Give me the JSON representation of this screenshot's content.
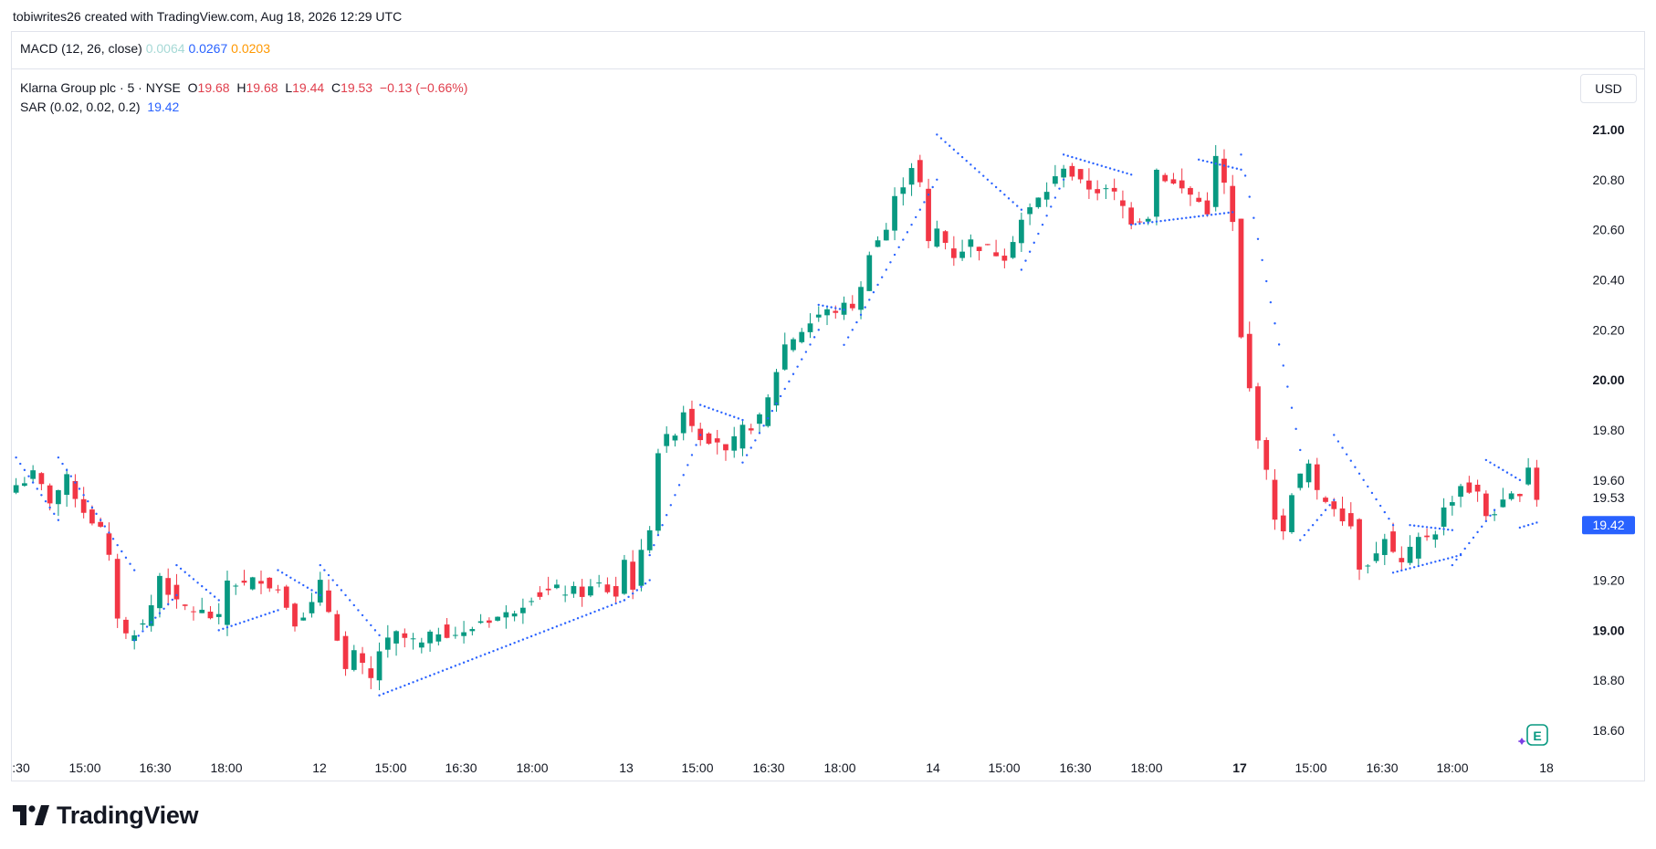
{
  "header": {
    "credit": "tobiwrites26 created with TradingView.com, Aug 18, 2026 12:29 UTC"
  },
  "macd": {
    "label": "MACD (12, 26, close)",
    "v1": "0.0064",
    "v2": "0.0267",
    "v3": "0.0203",
    "colors": {
      "v1": "#a6d9d6",
      "v2": "#2962ff",
      "v3": "#ff9800"
    }
  },
  "legend": {
    "symbol": "Klarna Group plc · 5 · NYSE",
    "o_label": "O",
    "o_value": "19.68",
    "h_label": "H",
    "h_value": "19.68",
    "l_label": "L",
    "l_value": "19.44",
    "c_label": "C",
    "c_value": "19.53",
    "change": "−0.13 (−0.66%)",
    "sar_label": "SAR (0.02, 0.02, 0.2)",
    "sar_value": "19.42"
  },
  "currency_button": "USD",
  "brand": {
    "name": "TradingView"
  },
  "icons": {
    "logo": "tradingview-logo-icon",
    "earnings": "earnings-e-icon"
  },
  "chart_data": {
    "type": "candlestick",
    "ylim": [
      18.52,
      21.08
    ],
    "y_ticks": [
      "21.00",
      "20.80",
      "20.60",
      "20.40",
      "20.20",
      "20.00",
      "19.80",
      "19.60",
      "19.20",
      "19.00",
      "18.80",
      "18.60"
    ],
    "y_bold_ticks": [
      "21.00",
      "20.00",
      "19.00"
    ],
    "current_price_label": "19.53",
    "sar_price_label": "19.42",
    "x_ticks": [
      ":30",
      "15:00",
      "16:30",
      "18:00",
      "12",
      "15:00",
      "16:30",
      "18:00",
      "13",
      "15:00",
      "16:30",
      "18:00",
      "14",
      "15:00",
      "16:30",
      "18:00",
      "17",
      "15:00",
      "16:30",
      "18:00",
      "18"
    ],
    "x_bold_ticks": [
      "17"
    ],
    "colors": {
      "up": "#089981",
      "down": "#f23645",
      "sar": "#2962ff",
      "price_tag": "#2962ff"
    },
    "price_path": [
      [
        0,
        19.58
      ],
      [
        2,
        19.62
      ],
      [
        4,
        19.52
      ],
      [
        6,
        19.6
      ],
      [
        8,
        19.48
      ],
      [
        10,
        19.4
      ],
      [
        11,
        19.28
      ],
      [
        12,
        19.06
      ],
      [
        13,
        18.98
      ],
      [
        15,
        19.02
      ],
      [
        16,
        19.1
      ],
      [
        17,
        19.22
      ],
      [
        19,
        19.1
      ],
      [
        22,
        19.07
      ],
      [
        24,
        19.04
      ],
      [
        25,
        19.2
      ],
      [
        27,
        19.18
      ],
      [
        29,
        19.21
      ],
      [
        31,
        19.16
      ],
      [
        33,
        19.04
      ],
      [
        35,
        19.1
      ],
      [
        36,
        19.18
      ],
      [
        37,
        19.08
      ],
      [
        38,
        18.98
      ],
      [
        39,
        18.84
      ],
      [
        40,
        18.9
      ],
      [
        42,
        18.8
      ],
      [
        43,
        18.92
      ],
      [
        45,
        18.98
      ],
      [
        48,
        18.94
      ],
      [
        50,
        19.0
      ],
      [
        53,
        18.98
      ],
      [
        55,
        19.04
      ],
      [
        58,
        19.06
      ],
      [
        61,
        19.14
      ],
      [
        64,
        19.16
      ],
      [
        67,
        19.15
      ],
      [
        69,
        19.18
      ],
      [
        71,
        19.14
      ],
      [
        72,
        19.28
      ],
      [
        73,
        19.18
      ],
      [
        74,
        19.3
      ],
      [
        75,
        19.42
      ],
      [
        76,
        19.72
      ],
      [
        78,
        19.8
      ],
      [
        79,
        19.88
      ],
      [
        81,
        19.78
      ],
      [
        83,
        19.76
      ],
      [
        84,
        19.7
      ],
      [
        86,
        19.8
      ],
      [
        88,
        19.84
      ],
      [
        89,
        19.92
      ],
      [
        90,
        20.04
      ],
      [
        91,
        20.14
      ],
      [
        93,
        20.2
      ],
      [
        95,
        20.26
      ],
      [
        97,
        20.28
      ],
      [
        99,
        20.3
      ],
      [
        100,
        20.36
      ],
      [
        101,
        20.52
      ],
      [
        103,
        20.6
      ],
      [
        104,
        20.72
      ],
      [
        106,
        20.86
      ],
      [
        107,
        20.78
      ],
      [
        108,
        20.54
      ],
      [
        109,
        20.6
      ],
      [
        111,
        20.5
      ],
      [
        113,
        20.55
      ],
      [
        115,
        20.52
      ],
      [
        117,
        20.5
      ],
      [
        119,
        20.64
      ],
      [
        121,
        20.72
      ],
      [
        123,
        20.8
      ],
      [
        124,
        20.86
      ],
      [
        126,
        20.78
      ],
      [
        128,
        20.76
      ],
      [
        130,
        20.74
      ],
      [
        132,
        20.64
      ],
      [
        134,
        20.66
      ],
      [
        135,
        20.84
      ],
      [
        137,
        20.78
      ],
      [
        139,
        20.74
      ],
      [
        141,
        20.68
      ],
      [
        142,
        20.88
      ],
      [
        143,
        20.78
      ],
      [
        144,
        20.62
      ],
      [
        145,
        20.16
      ],
      [
        146,
        19.96
      ],
      [
        147,
        19.78
      ],
      [
        148,
        19.62
      ],
      [
        149,
        19.46
      ],
      [
        150,
        19.38
      ],
      [
        151,
        19.56
      ],
      [
        153,
        19.66
      ],
      [
        154,
        19.54
      ],
      [
        156,
        19.5
      ],
      [
        158,
        19.42
      ],
      [
        159,
        19.26
      ],
      [
        161,
        19.3
      ],
      [
        162,
        19.38
      ],
      [
        163,
        19.3
      ],
      [
        164,
        19.26
      ],
      [
        166,
        19.36
      ],
      [
        168,
        19.4
      ],
      [
        169,
        19.48
      ],
      [
        171,
        19.58
      ],
      [
        173,
        19.54
      ],
      [
        174,
        19.46
      ],
      [
        176,
        19.5
      ],
      [
        178,
        19.56
      ],
      [
        179,
        19.66
      ],
      [
        180,
        19.53
      ]
    ],
    "sar_segments": [
      {
        "from": [
          0,
          19.69
        ],
        "to": [
          5,
          19.44
        ]
      },
      {
        "from": [
          5,
          19.69
        ],
        "to": [
          14,
          19.24
        ]
      },
      {
        "from": [
          14,
          18.96
        ],
        "to": [
          19,
          19.14
        ]
      },
      {
        "from": [
          19,
          19.26
        ],
        "to": [
          24,
          19.12
        ]
      },
      {
        "from": [
          24,
          19.0
        ],
        "to": [
          31,
          19.08
        ]
      },
      {
        "from": [
          31,
          19.24
        ],
        "to": [
          36,
          19.14
        ]
      },
      {
        "from": [
          36,
          19.26
        ],
        "to": [
          43,
          18.98
        ]
      },
      {
        "from": [
          43,
          18.74
        ],
        "to": [
          72,
          19.12
        ]
      },
      {
        "from": [
          72,
          19.12
        ],
        "to": [
          75,
          19.2
        ]
      },
      {
        "from": [
          75,
          19.3
        ],
        "to": [
          81,
          19.78
        ]
      },
      {
        "from": [
          81,
          19.9
        ],
        "to": [
          86,
          19.84
        ]
      },
      {
        "from": [
          86,
          19.67
        ],
        "to": [
          95,
          20.2
        ]
      },
      {
        "from": [
          95,
          20.3
        ],
        "to": [
          98,
          20.28
        ]
      },
      {
        "from": [
          98,
          20.14
        ],
        "to": [
          109,
          20.8
        ]
      },
      {
        "from": [
          109,
          20.98
        ],
        "to": [
          119,
          20.68
        ]
      },
      {
        "from": [
          119,
          20.44
        ],
        "to": [
          124,
          20.8
        ]
      },
      {
        "from": [
          124,
          20.9
        ],
        "to": [
          132,
          20.82
        ]
      },
      {
        "from": [
          132,
          20.62
        ],
        "to": [
          144,
          20.67
        ]
      },
      {
        "from": [
          140,
          20.88
        ],
        "to": [
          145,
          20.84
        ]
      },
      {
        "from": [
          145,
          20.9
        ],
        "to": [
          152,
          19.72
        ]
      },
      {
        "from": [
          152,
          19.36
        ],
        "to": [
          156,
          19.52
        ]
      },
      {
        "from": [
          156,
          19.78
        ],
        "to": [
          163,
          19.42
        ]
      },
      {
        "from": [
          163,
          19.23
        ],
        "to": [
          171,
          19.3
        ]
      },
      {
        "from": [
          165,
          19.42
        ],
        "to": [
          170,
          19.4
        ]
      },
      {
        "from": [
          170,
          19.26
        ],
        "to": [
          175,
          19.48
        ]
      },
      {
        "from": [
          174,
          19.68
        ],
        "to": [
          178,
          19.6
        ]
      },
      {
        "from": [
          178,
          19.41
        ],
        "to": [
          180,
          19.43
        ]
      }
    ]
  }
}
